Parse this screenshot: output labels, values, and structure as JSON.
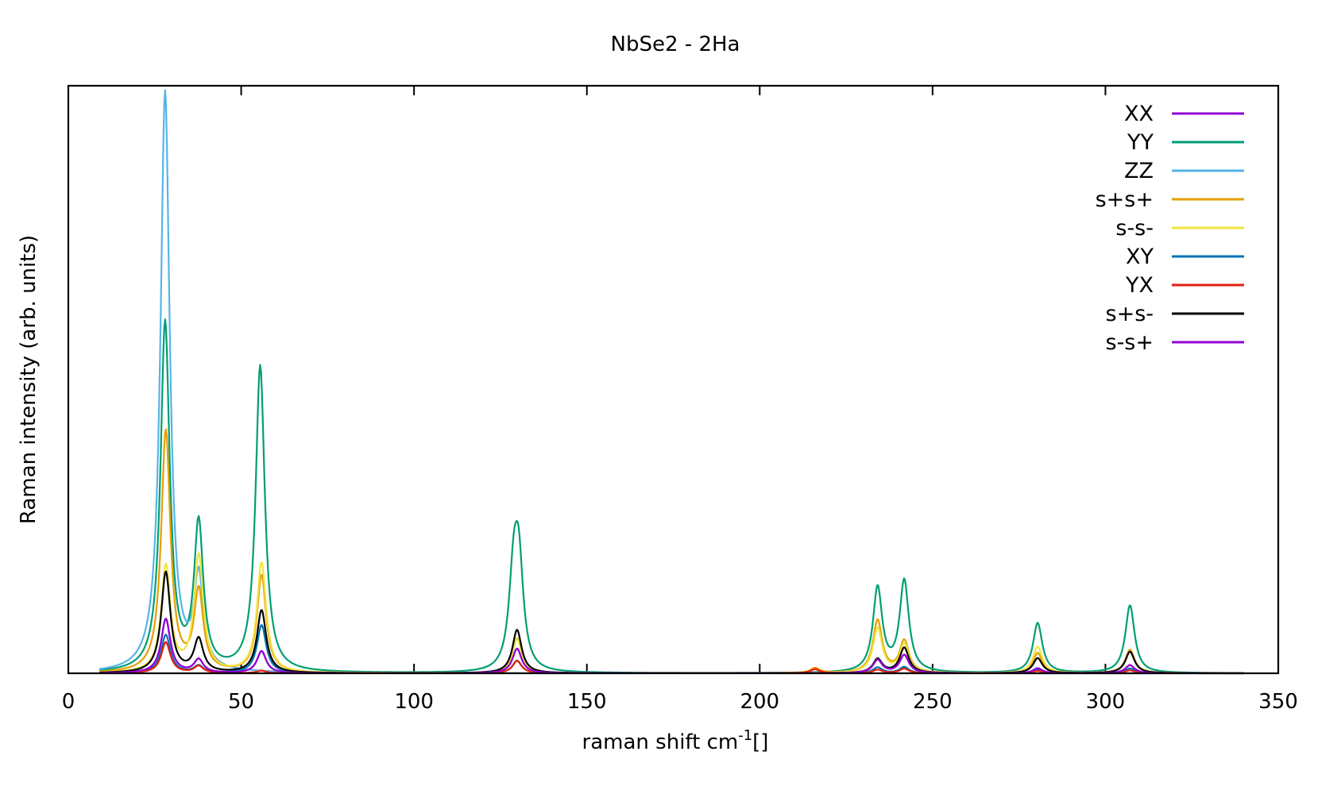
{
  "chart_data": {
    "type": "line",
    "title": "NbSe2 - 2Ha",
    "xlabel_main": "raman shift cm",
    "xlabel_sup": "-1",
    "xlabel_tail": "[]",
    "ylabel": "Raman intensity (arb. units)",
    "xlim": [
      0,
      350
    ],
    "ylim": [
      0,
      1.0
    ],
    "xticks": [
      0,
      50,
      100,
      150,
      200,
      250,
      300,
      350
    ],
    "xtick_labels": [
      "0",
      "50",
      "100",
      "150",
      "200",
      "250",
      "300",
      "350"
    ],
    "x_range_data": [
      9,
      340
    ],
    "legend_position": "top-right",
    "series": [
      {
        "name": "XX",
        "color": "#9400d3",
        "peaks": [
          {
            "x": 28.2,
            "h": 0.0924
          },
          {
            "x": 37.7,
            "h": 0.0225
          },
          {
            "x": 55.9,
            "h": 0.0375
          },
          {
            "x": 129.8,
            "h": 0.042
          },
          {
            "x": 234.1,
            "h": 0.0223
          },
          {
            "x": 241.8,
            "h": 0.0309
          },
          {
            "x": 280.4,
            "h": 0.0085
          },
          {
            "x": 307.1,
            "h": 0.0139
          }
        ]
      },
      {
        "name": "YY",
        "color": "#009e73",
        "peaks": [
          {
            "x": 28.0,
            "h": 0.5939
          },
          {
            "x": 37.7,
            "h": 0.248
          },
          {
            "x": 55.5,
            "h": 0.5209
          },
          {
            "x": 128.8,
            "h": 0.1456
          },
          {
            "x": 130.3,
            "h": 0.169
          },
          {
            "x": 234.1,
            "h": 0.1438
          },
          {
            "x": 241.8,
            "h": 0.1554
          },
          {
            "x": 280.4,
            "h": 0.0852
          },
          {
            "x": 307.1,
            "h": 0.1154
          }
        ]
      },
      {
        "name": "ZZ",
        "color": "#56b4e9",
        "peaks": [
          {
            "x": 28.0,
            "h": 0.9884
          },
          {
            "x": 37.7,
            "h": 0.1557
          }
        ]
      },
      {
        "name": "s+s+",
        "color": "#e69f00",
        "peaks": [
          {
            "x": 28.2,
            "h": 0.4114
          },
          {
            "x": 37.7,
            "h": 0.1366
          },
          {
            "x": 55.9,
            "h": 0.1657
          },
          {
            "x": 129.8,
            "h": 0.0593
          },
          {
            "x": 234.1,
            "h": 0.0897
          },
          {
            "x": 241.8,
            "h": 0.0544
          },
          {
            "x": 280.4,
            "h": 0.0346
          },
          {
            "x": 307.1,
            "h": 0.04
          },
          {
            "x": 216.0,
            "h": 0.0085
          }
        ]
      },
      {
        "name": "s-s-",
        "color": "#f0e442",
        "peaks": [
          {
            "x": 28.2,
            "h": 0.1807
          },
          {
            "x": 37.7,
            "h": 0.1986
          },
          {
            "x": 55.9,
            "h": 0.1874
          },
          {
            "x": 129.8,
            "h": 0.0584
          },
          {
            "x": 234.1,
            "h": 0.0765
          },
          {
            "x": 241.8,
            "h": 0.0485
          },
          {
            "x": 280.4,
            "h": 0.0449
          },
          {
            "x": 307.1,
            "h": 0.0367
          }
        ]
      },
      {
        "name": "XY",
        "color": "#0072b2",
        "peaks": [
          {
            "x": 28.2,
            "h": 0.0653
          },
          {
            "x": 37.7,
            "h": 0.012
          },
          {
            "x": 55.9,
            "h": 0.082
          },
          {
            "x": 129.8,
            "h": 0.0216
          },
          {
            "x": 234.1,
            "h": 0.01
          },
          {
            "x": 241.8,
            "h": 0.0107
          },
          {
            "x": 280.4,
            "h": 0.0061
          },
          {
            "x": 307.1,
            "h": 0.0083
          }
        ]
      },
      {
        "name": "YX",
        "color": "#e51e10",
        "peaks": [
          {
            "x": 28.2,
            "h": 0.0529
          },
          {
            "x": 37.7,
            "h": 0.012
          },
          {
            "x": 55.9,
            "h": 0.0043
          },
          {
            "x": 129.8,
            "h": 0.0211
          },
          {
            "x": 216.0,
            "h": 0.007
          },
          {
            "x": 234.1,
            "h": 0.006
          },
          {
            "x": 241.8,
            "h": 0.0077
          },
          {
            "x": 280.4,
            "h": 0.004
          },
          {
            "x": 307.1,
            "h": 0.005
          }
        ]
      },
      {
        "name": "s+s-",
        "color": "#000000",
        "peaks": [
          {
            "x": 28.2,
            "h": 0.1714
          },
          {
            "x": 37.7,
            "h": 0.0566
          },
          {
            "x": 55.9,
            "h": 0.107
          },
          {
            "x": 129.8,
            "h": 0.074
          },
          {
            "x": 234.1,
            "h": 0.0238
          },
          {
            "x": 241.8,
            "h": 0.0432
          },
          {
            "x": 280.4,
            "h": 0.0258
          },
          {
            "x": 307.1,
            "h": 0.0367
          }
        ]
      },
      {
        "name": "s-s+",
        "color": "#9400d3",
        "peaks": [
          {
            "x": 28.2,
            "h": 0.0924
          },
          {
            "x": 37.7,
            "h": 0.0225
          },
          {
            "x": 55.9,
            "h": 0.0375
          },
          {
            "x": 129.8,
            "h": 0.042
          },
          {
            "x": 234.1,
            "h": 0.0223
          },
          {
            "x": 241.8,
            "h": 0.0309
          },
          {
            "x": 280.4,
            "h": 0.0085
          },
          {
            "x": 307.1,
            "h": 0.0139
          }
        ]
      }
    ]
  }
}
